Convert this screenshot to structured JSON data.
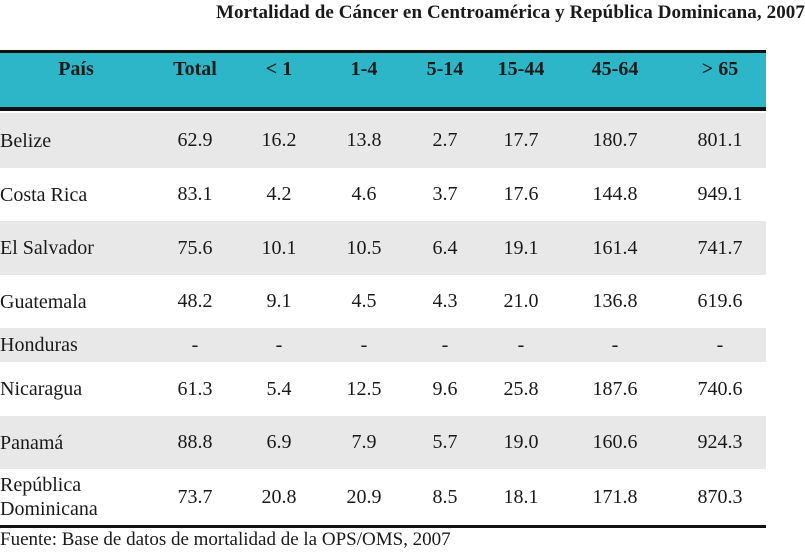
{
  "title": "Mortalidad de Cáncer en Centroamérica y República Dominicana, 2007",
  "headers": [
    "País",
    "Total",
    "< 1",
    "1-4",
    "5-14",
    "15-44",
    "45-64",
    "> 65"
  ],
  "rows": [
    {
      "country": "Belize",
      "values": [
        "62.9",
        "16.2",
        "13.8",
        "2.7",
        "17.7",
        "180.7",
        "801.1"
      ]
    },
    {
      "country": "Costa Rica",
      "values": [
        "83.1",
        "4.2",
        "4.6",
        "3.7",
        "17.6",
        "144.8",
        "949.1"
      ]
    },
    {
      "country": "El Salvador",
      "values": [
        "75.6",
        "10.1",
        "10.5",
        "6.4",
        "19.1",
        "161.4",
        "741.7"
      ]
    },
    {
      "country": "Guatemala",
      "values": [
        "48.2",
        "9.1",
        "4.5",
        "4.3",
        "21.0",
        "136.8",
        "619.6"
      ]
    },
    {
      "country": "Honduras",
      "values": [
        "-",
        "-",
        "-",
        "-",
        "-",
        "-",
        "-"
      ]
    },
    {
      "country": "Nicaragua",
      "values": [
        "61.3",
        "5.4",
        "12.5",
        "9.6",
        "25.8",
        "187.6",
        "740.6"
      ]
    },
    {
      "country": "Panamá",
      "values": [
        "88.8",
        "6.9",
        "7.9",
        "5.7",
        "19.0",
        "160.6",
        "924.3"
      ]
    },
    {
      "country": "República\nDominicana",
      "values": [
        "73.7",
        "20.8",
        "20.9",
        "8.5",
        "18.1",
        "171.8",
        "870.3"
      ]
    }
  ],
  "footer": "Fuente: Base de datos de mortalidad de la OPS/OMS, 2007",
  "colors": {
    "header_bg": "#2db6c8",
    "row_shade": "#e8e8e8"
  }
}
